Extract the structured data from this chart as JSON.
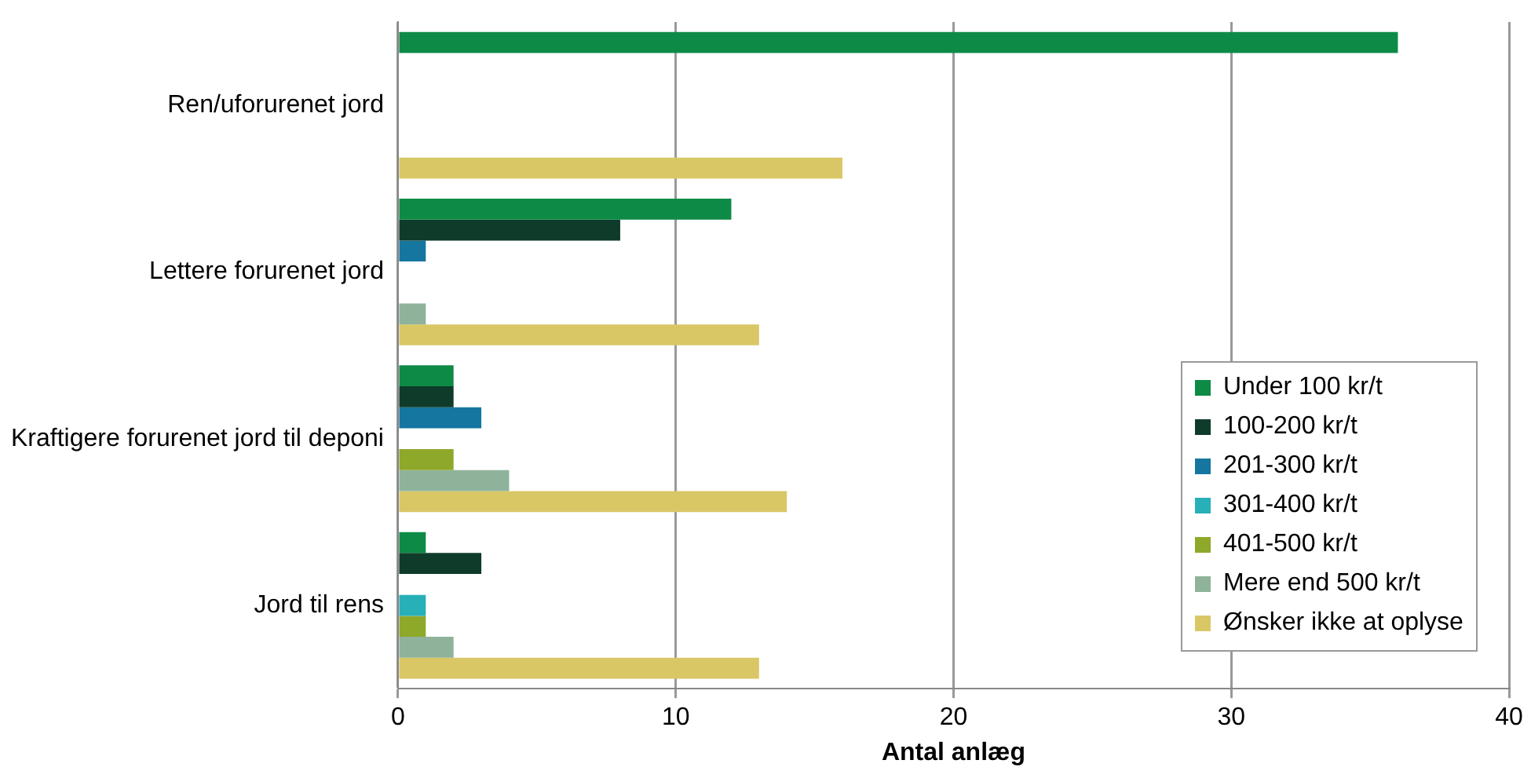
{
  "chart_data": {
    "type": "bar",
    "orientation": "horizontal",
    "xlabel": "Antal anlæg",
    "categories": [
      "Ren/uforurenet jord",
      "Lettere forurenet jord",
      "Kraftigere forurenet jord til deponi",
      "Jord til rens"
    ],
    "series": [
      {
        "name": "Under 100 kr/t",
        "color": "#0e8a47",
        "values": [
          36,
          12,
          2,
          1
        ]
      },
      {
        "name": "100-200 kr/t",
        "color": "#0f3b2a",
        "values": [
          0,
          8,
          2,
          3
        ]
      },
      {
        "name": "201-300 kr/t",
        "color": "#1576a0",
        "values": [
          0,
          1,
          3,
          0
        ]
      },
      {
        "name": "301-400 kr/t",
        "color": "#27b0b8",
        "values": [
          0,
          0,
          0,
          1
        ]
      },
      {
        "name": "401-500 kr/t",
        "color": "#8ea82a",
        "values": [
          0,
          0,
          2,
          1
        ]
      },
      {
        "name": "Mere end 500 kr/t",
        "color": "#8fb39a",
        "values": [
          0,
          1,
          4,
          2
        ]
      },
      {
        "name": "Ønsker ikke at oplyse",
        "color": "#d9c766",
        "values": [
          16,
          13,
          14,
          13
        ]
      }
    ],
    "xlim": [
      0,
      40
    ],
    "xticks": [
      0,
      10,
      20,
      30,
      40
    ],
    "grid": "x",
    "legend": "bottom right"
  }
}
